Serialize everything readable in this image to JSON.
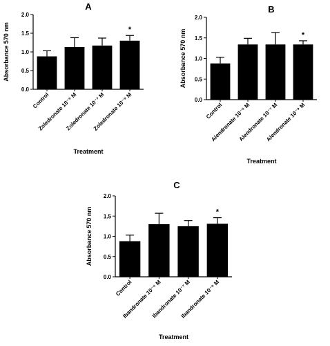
{
  "chart_data": [
    {
      "type": "bar",
      "panel": "A",
      "categories": [
        "Control",
        "Zoledronate 10⁻⁵ M",
        "Zoledronate 10⁻⁷ M",
        "Zoledronate 10⁻⁹ M"
      ],
      "series": [
        {
          "values": [
            0.88,
            1.13,
            1.17,
            1.3
          ],
          "errors": [
            0.15,
            0.25,
            0.2,
            0.14
          ]
        }
      ],
      "annotations": [
        "",
        "",
        "",
        "*"
      ],
      "xlabel": "Treatment",
      "ylabel": "Absorbance 570 nm",
      "ylim": [
        0,
        2.0
      ],
      "yticks": [
        "0.0",
        "0.5",
        "1.0",
        "1.5",
        "2.0"
      ],
      "color": "#000000"
    },
    {
      "type": "bar",
      "panel": "B",
      "categories": [
        "Control",
        "Alendronate 10⁻⁵ M",
        "Alendronate 10⁻⁷ M",
        "Alendronate 10⁻⁹ M"
      ],
      "series": [
        {
          "values": [
            0.88,
            1.34,
            1.34,
            1.34
          ],
          "errors": [
            0.15,
            0.15,
            0.29,
            0.09
          ]
        }
      ],
      "annotations": [
        "",
        "",
        "",
        "*"
      ],
      "xlabel": "Treatment",
      "ylabel": "Absorbance 570 nm",
      "ylim": [
        0,
        2.0
      ],
      "yticks": [
        "0.0",
        "0.5",
        "1.0",
        "1.5",
        "2.0"
      ],
      "color": "#000000"
    },
    {
      "type": "bar",
      "panel": "C",
      "categories": [
        "Control",
        "Ibandronate 10⁻⁵ M",
        "Ibandronate 10⁻⁷ M",
        "Ibandronate 10⁻⁹ M"
      ],
      "series": [
        {
          "values": [
            0.88,
            1.3,
            1.25,
            1.31
          ],
          "errors": [
            0.15,
            0.27,
            0.14,
            0.15
          ]
        }
      ],
      "annotations": [
        "",
        "",
        "",
        "*"
      ],
      "xlabel": "Treatment",
      "ylabel": "Absorbance 570 nm",
      "ylim": [
        0,
        2.0
      ],
      "yticks": [
        "0.0",
        "0.5",
        "1.0",
        "1.5",
        "2.0"
      ],
      "color": "#000000"
    }
  ]
}
